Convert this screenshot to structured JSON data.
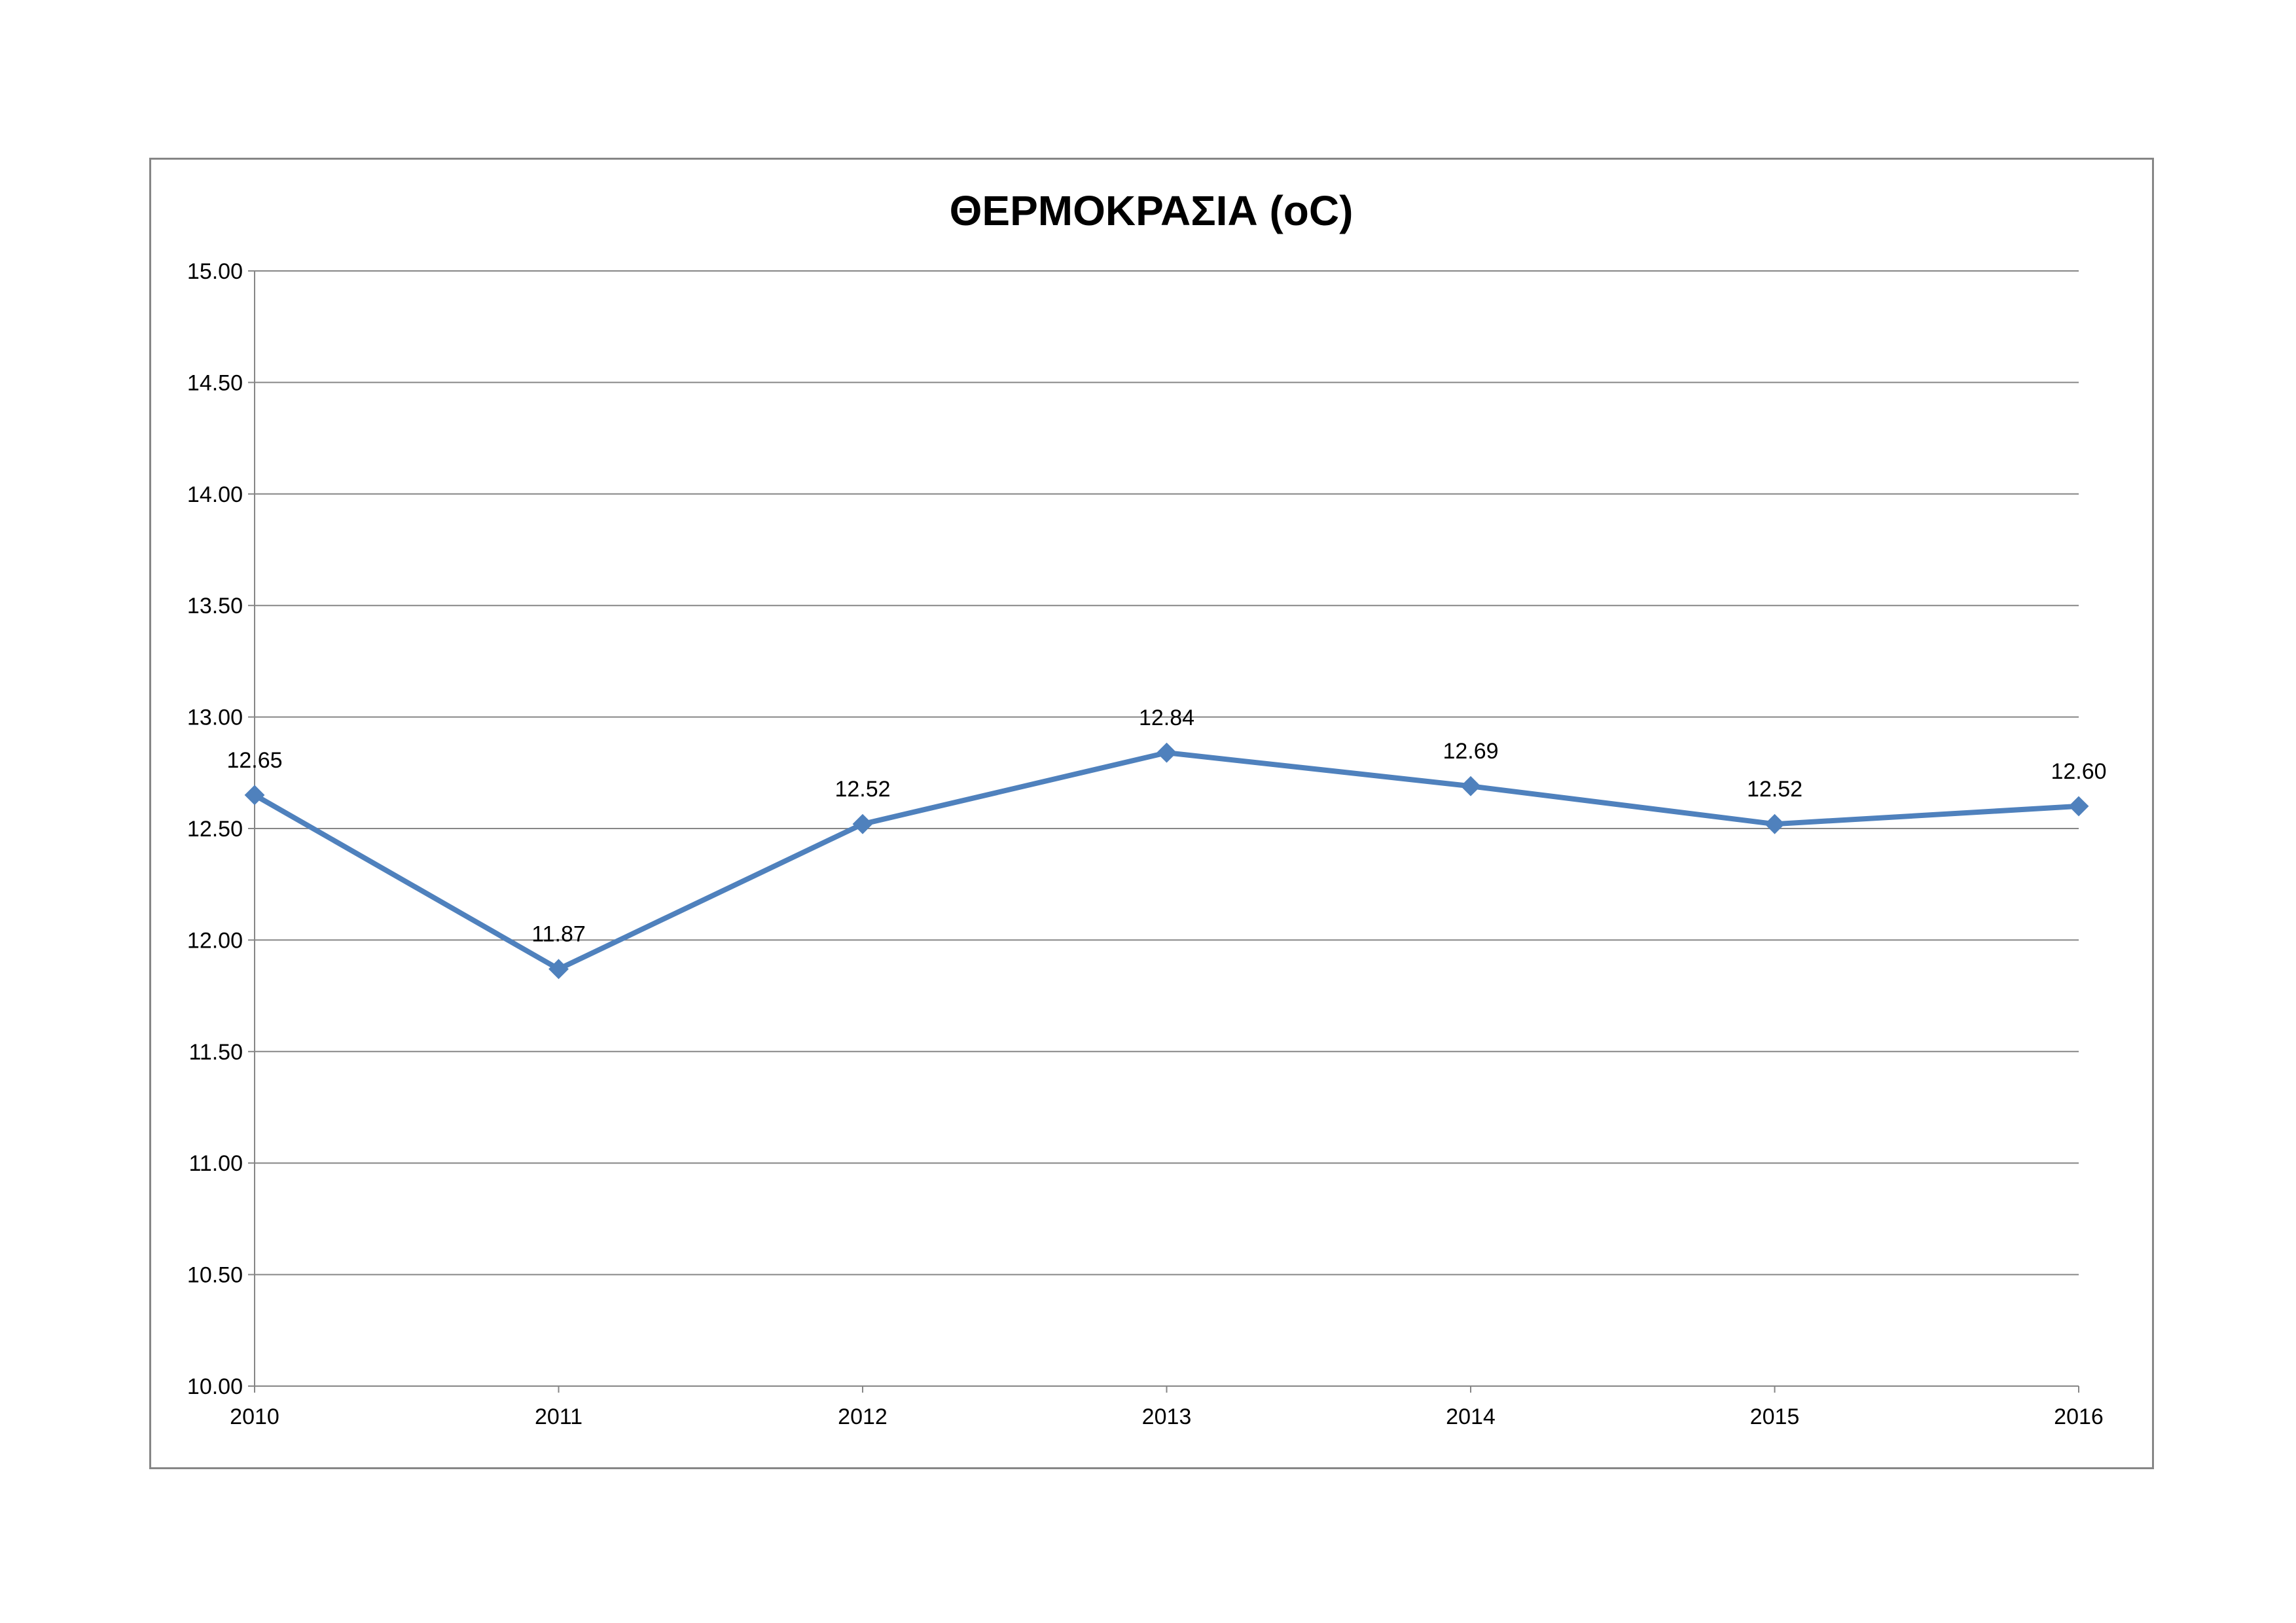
{
  "chart_data": {
    "type": "line",
    "title": "ΘΕΡΜΟΚΡΑΣΙΑ (oC)",
    "xlabel": "",
    "ylabel": "",
    "categories": [
      "2010",
      "2011",
      "2012",
      "2013",
      "2014",
      "2015",
      "2016"
    ],
    "series": [
      {
        "values": [
          12.65,
          11.87,
          12.52,
          12.84,
          12.69,
          12.52,
          12.6
        ],
        "data_labels": [
          "12.65",
          "11.87",
          "12.52",
          "12.84",
          "12.69",
          "12.52",
          "12.60"
        ]
      }
    ],
    "ylim": [
      10.0,
      15.0
    ],
    "y_ticks": [
      "10.00",
      "10.50",
      "11.00",
      "11.50",
      "12.00",
      "12.50",
      "13.00",
      "13.50",
      "14.00",
      "14.50",
      "15.00"
    ],
    "grid": "horizontal",
    "legend": "none",
    "colors": {
      "line": "#4F81BD",
      "grid": "#868686",
      "axis": "#868686",
      "frame_border": "#868686",
      "background": "#FFFFFF"
    },
    "marker": "diamond-icon"
  }
}
